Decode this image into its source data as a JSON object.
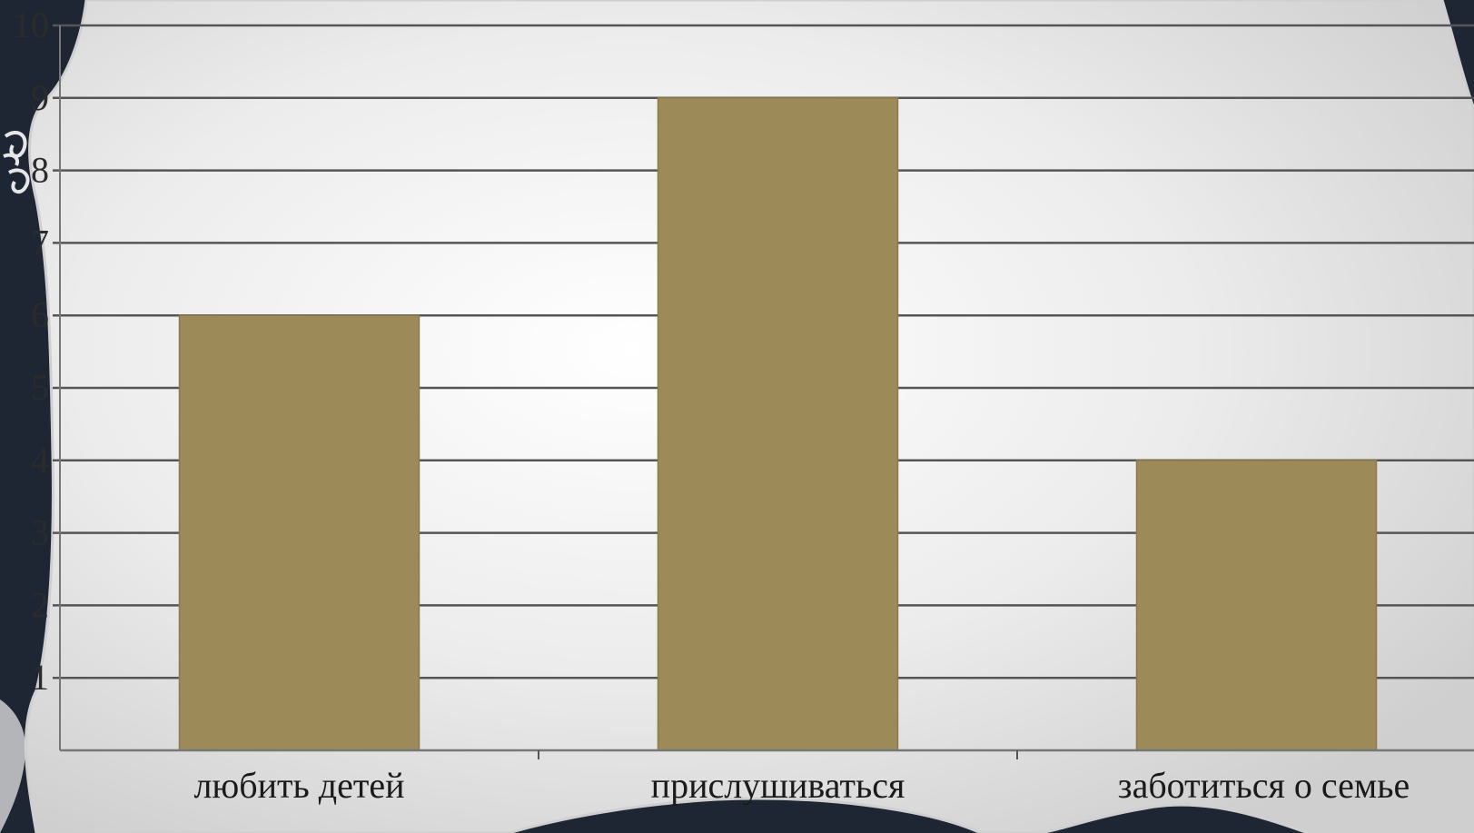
{
  "chart_data": {
    "type": "bar",
    "title": "",
    "xlabel": "",
    "ylabel": "",
    "categories": [
      "любить детей",
      "прислушиваться",
      "заботиться о семье"
    ],
    "values": [
      6,
      9,
      4
    ],
    "ylim": [
      0,
      10
    ],
    "yticks": [
      "1",
      "2",
      "3",
      "4",
      "5",
      "6",
      "7",
      "8",
      "9",
      "10"
    ],
    "grid": true,
    "bar_color": "#9c8b58",
    "gridline_color": "#555555",
    "background": "#e8e8e8",
    "frame_color": "#1f2633"
  }
}
